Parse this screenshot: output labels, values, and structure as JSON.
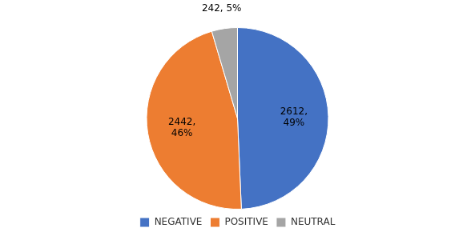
{
  "chart_data": {
    "type": "pie",
    "categories": [
      "NEGATIVE",
      "POSITIVE",
      "NEUTRAL"
    ],
    "values": [
      2612,
      2442,
      242
    ],
    "value_labels": [
      "2612,\n49%",
      "2442,\n46%",
      "242, 5%"
    ],
    "colors": [
      "#4472C4",
      "#ED7D31",
      "#A5A5A5"
    ],
    "data_labels": true,
    "legend": "bottom"
  }
}
